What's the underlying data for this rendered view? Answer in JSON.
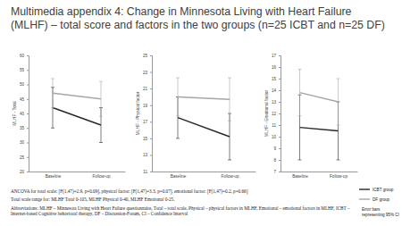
{
  "title": "Multimedia appendix 4: Change in Minnesota Living with Heart Failure (MLHF) – total score and factors in the two groups (n=25 ICBT and n=25 DF)",
  "notes": [
    "ANCOVA for total scale: [F(1,47)=2.9, p=0.09], physical factor: [F(1,47)=3.3, p=0.07], emotional factor: [F(1,47)=0.2, p=0.66]",
    "Total scale range for: MLHF Total 0-105, MLHF Physical 0-40, MLHF Emotional 0-25.",
    "Abbreviations: MLHF – Minnesota Living with Heart Failure questionnaire, Total – total scale, Physical – physical factors in MLHF, Emotional – emotional factors in MLHF, ICBT – Internet-based Cognitive behavioral therapy, DF – Discussion-Forum, CI – Confidence Interval"
  ],
  "chart_data": [
    {
      "type": "line",
      "y_label": "MLHF - Total",
      "categories": [
        "Baseline",
        "Follow-up"
      ],
      "ylim": [
        20,
        60
      ],
      "yticks": [
        20,
        25,
        30,
        35,
        40,
        45,
        50,
        55,
        60
      ],
      "series": [
        {
          "color": "#262626",
          "values": [
            42,
            36
          ],
          "error": [
            7,
            6
          ]
        },
        {
          "color": "#a6a6a6",
          "values": [
            47,
            45
          ],
          "error": [
            5,
            6
          ]
        }
      ]
    },
    {
      "type": "line",
      "y_label": "MLHF - Physical factor",
      "categories": [
        "Baseline",
        "Follow-up"
      ],
      "ylim": [
        11,
        25
      ],
      "yticks": [
        11,
        13,
        15,
        17,
        19,
        21,
        23,
        25
      ],
      "series": [
        {
          "color": "#262626",
          "values": [
            17.5,
            15.2
          ],
          "error": [
            2.5,
            2.8
          ]
        },
        {
          "color": "#a6a6a6",
          "values": [
            20,
            19.7
          ],
          "error": [
            2.3,
            2.6
          ]
        }
      ]
    },
    {
      "type": "line",
      "y_label": "MLHF - Emotional factor",
      "categories": [
        "Baseline",
        "Follow-up"
      ],
      "ylim": [
        7,
        17
      ],
      "yticks": [
        7,
        8,
        9,
        10,
        11,
        12,
        13,
        14,
        15,
        16,
        17
      ],
      "legend": "right",
      "annotations": [
        "Error bars representing 95% CI"
      ],
      "series": [
        {
          "name": "ICBT group",
          "color": "#262626",
          "values": [
            10.8,
            10.5
          ],
          "error": [
            2.8,
            2.5
          ]
        },
        {
          "name": "DF group",
          "color": "#a6a6a6",
          "values": [
            13.8,
            13
          ],
          "error": [
            2,
            2
          ]
        }
      ]
    }
  ]
}
